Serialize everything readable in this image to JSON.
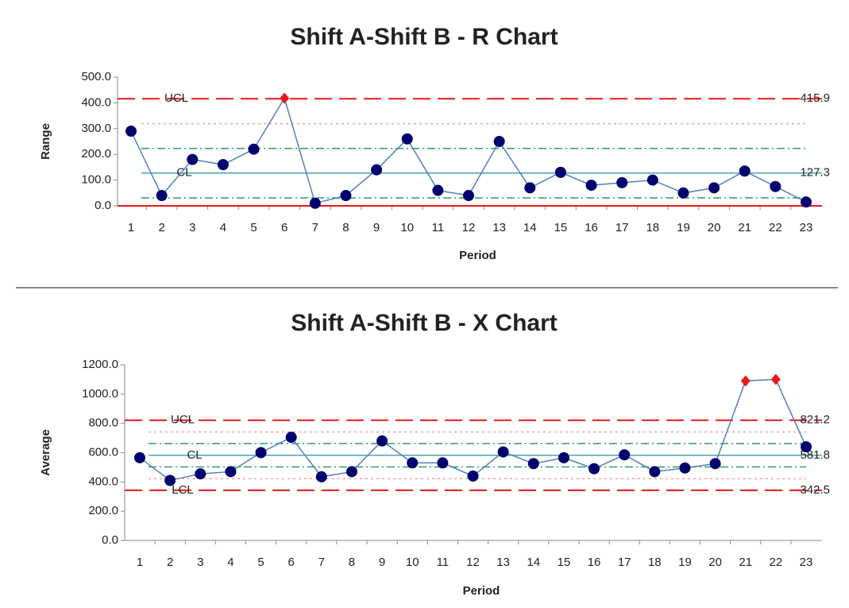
{
  "chart_data": [
    {
      "type": "line",
      "title": "Shift A-Shift B - R Chart",
      "x_label": "Period",
      "y_label": "Range",
      "categories": [
        "1",
        "2",
        "3",
        "4",
        "5",
        "6",
        "7",
        "8",
        "9",
        "10",
        "11",
        "12",
        "13",
        "14",
        "15",
        "16",
        "17",
        "18",
        "19",
        "20",
        "21",
        "22",
        "23"
      ],
      "values": [
        290,
        40,
        180,
        160,
        220,
        418,
        10,
        40,
        140,
        260,
        60,
        40,
        250,
        70,
        130,
        80,
        90,
        100,
        50,
        70,
        135,
        75,
        15
      ],
      "marker_color": "#00006e",
      "line_color": "#4f81bd",
      "out_of_control_color": "#e8171b",
      "ylim": [
        0,
        500
      ],
      "yticks": [
        {
          "value": 0,
          "label": "0.0"
        },
        {
          "value": 100,
          "label": "100.0"
        },
        {
          "value": 200,
          "label": "200.0"
        },
        {
          "value": 300,
          "label": "300.0"
        },
        {
          "value": 400,
          "label": "400.0"
        },
        {
          "value": 500,
          "label": "500.0"
        }
      ],
      "limits": [
        {
          "label": "UCL",
          "value": 415.9,
          "color": "#e8171b",
          "kind": "control"
        },
        {
          "label": "CL",
          "value": 127.3,
          "color": "#4aa3b0",
          "kind": "center"
        },
        {
          "value": {
            "value": 0,
            "label": ""
          },
          "color": "#e8171b",
          "kind": "lower"
        }
      ],
      "zones": [
        {
          "value": 319,
          "color": "#f4a0a0",
          "kind": "dot"
        },
        {
          "value": 223,
          "color": "#2e9a6e",
          "kind": "dashdot"
        },
        {
          "value": 31,
          "color": "#2e9a6e",
          "kind": "dashdot"
        }
      ]
    },
    {
      "type": "line",
      "title": "Shift A-Shift B - X Chart",
      "x_label": "Period",
      "y_label": "Average",
      "categories": [
        "1",
        "2",
        "3",
        "4",
        "5",
        "6",
        "7",
        "8",
        "9",
        "10",
        "11",
        "12",
        "13",
        "14",
        "15",
        "16",
        "17",
        "18",
        "19",
        "20",
        "21",
        "22",
        "23"
      ],
      "values": [
        565,
        410,
        455,
        470,
        600,
        705,
        435,
        470,
        680,
        530,
        530,
        440,
        605,
        525,
        565,
        490,
        585,
        470,
        495,
        525,
        1090,
        1100,
        640
      ],
      "marker_color": "#00006e",
      "line_color": "#4f81bd",
      "out_of_control_color": "#e8171b",
      "ylim": [
        0,
        1200
      ],
      "yticks": [
        {
          "value": 0,
          "label": "0.0"
        },
        {
          "value": 200,
          "label": "200.0"
        },
        {
          "value": 400,
          "label": "400.0"
        },
        {
          "value": 600,
          "label": "600.0"
        },
        {
          "value": 800,
          "label": "800.0"
        },
        {
          "value": 1000,
          "label": "1000.0"
        },
        {
          "value": 1200,
          "label": "1200.0"
        }
      ],
      "limits": [
        {
          "label": "UCL",
          "value": 821.2,
          "color": "#e8171b",
          "kind": "control"
        },
        {
          "label": "CL",
          "value": 581.8,
          "color": "#4aa3b0",
          "kind": "center"
        },
        {
          "label": "LCL",
          "value": 342.5,
          "color": "#e8171b",
          "kind": "control"
        }
      ],
      "zones": [
        {
          "value": 741.4,
          "color": "#f4a0a0",
          "kind": "dot"
        },
        {
          "value": 661.6,
          "color": "#2e9a6e",
          "kind": "dashdot"
        },
        {
          "value": 502,
          "color": "#2e9a6e",
          "kind": "dashdot"
        },
        {
          "value": 422.3,
          "color": "#f4a0a0",
          "kind": "dot"
        }
      ]
    }
  ]
}
